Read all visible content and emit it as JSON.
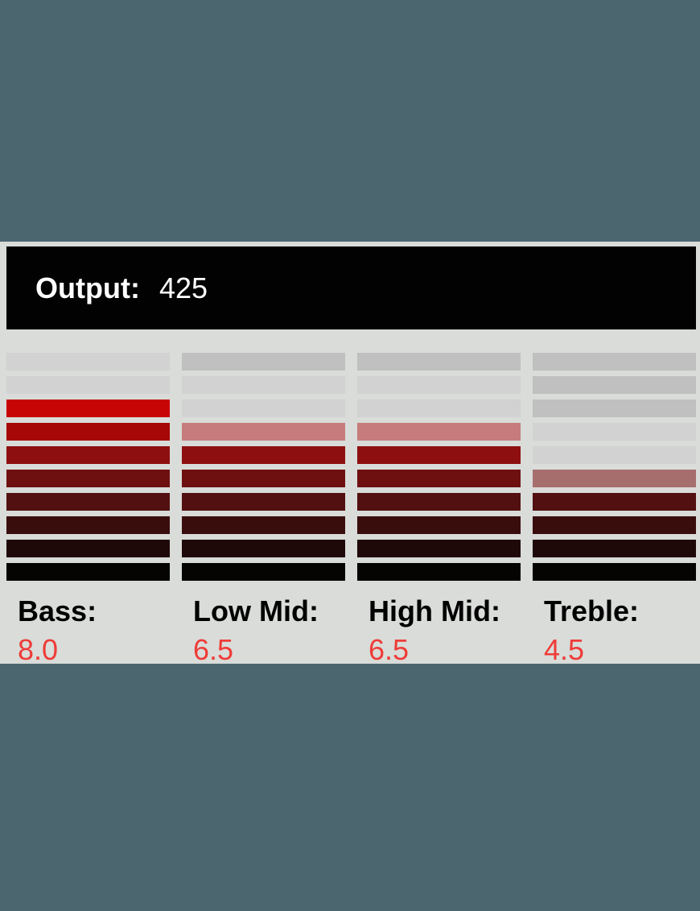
{
  "output": {
    "label": "Output:",
    "value": "425"
  },
  "colors": {
    "background": "#4c6670",
    "panel": "#d9dcd9",
    "header_bg": "#020202",
    "header_text": "#ffffff",
    "label_text": "#000000",
    "value_text": "#ee3c38",
    "segment_unlit_dark": "#bfc0bf",
    "segment_unlit_light": "#d1d2d1",
    "segment_peak_red": "#c80505"
  },
  "bands": [
    {
      "id": "bass",
      "label": "Bass:",
      "value": "8.0",
      "segments": [
        "#d1d2d1",
        "#d1d2d1",
        "#c80505",
        "#a60707",
        "#8e0f0f",
        "#6e1010",
        "#531010",
        "#3a0d0d",
        "#1f0808",
        "#060303"
      ]
    },
    {
      "id": "low-mid",
      "label": "Low Mid:",
      "value": "6.5",
      "segments": [
        "#bfc0bf",
        "#d1d2d1",
        "#d1d2d1",
        "#c67c7c",
        "#8e0f0f",
        "#6e1010",
        "#531010",
        "#3a0d0d",
        "#1f0808",
        "#060303"
      ]
    },
    {
      "id": "high-mid",
      "label": "High Mid:",
      "value": "6.5",
      "segments": [
        "#bfc0bf",
        "#d1d2d1",
        "#d1d2d1",
        "#c67c7c",
        "#8e0f0f",
        "#6e1010",
        "#531010",
        "#3a0d0d",
        "#1f0808",
        "#060303"
      ]
    },
    {
      "id": "treble",
      "label": "Treble:",
      "value": "4.5",
      "segments": [
        "#bfc0bf",
        "#bfc0bf",
        "#bfc0bf",
        "#d1d2d1",
        "#d1d2d1",
        "#a76e6e",
        "#531010",
        "#3a0d0d",
        "#1f0808",
        "#060303"
      ]
    }
  ],
  "chart_data": {
    "type": "bar",
    "categories": [
      "Bass",
      "Low Mid",
      "High Mid",
      "Treble"
    ],
    "values": [
      8.0,
      6.5,
      6.5,
      4.5
    ],
    "ylim": [
      0,
      10
    ],
    "title": "Output: 425",
    "note": "each meter has 10 segments; lit segments shade from bright red (top of lit region scale) to black (bottom); half-values shown as translucent pink segment"
  }
}
